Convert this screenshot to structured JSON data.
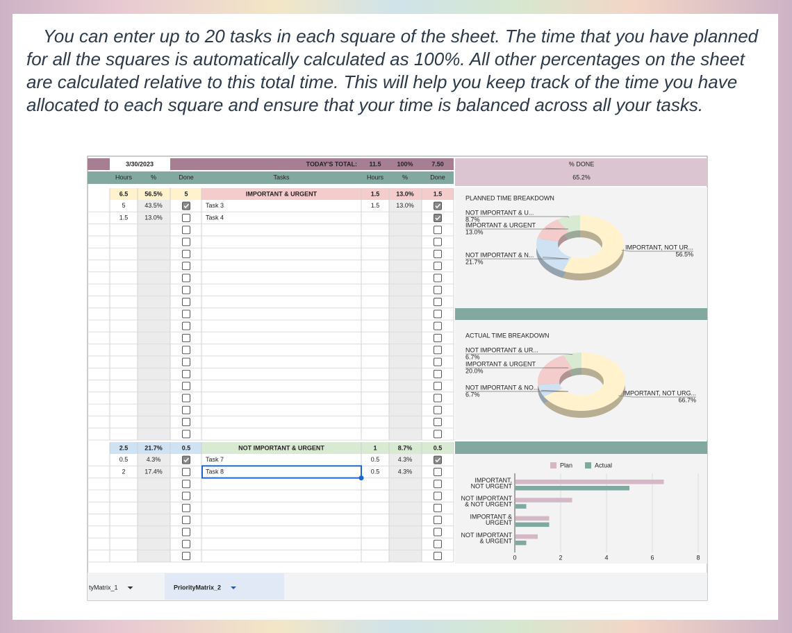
{
  "intro": "You can enter up to 20 tasks in each square of the sheet. The time that you have planned for all the squares is automatically calculated as 100%. All other percentages on the sheet are calculated relative to this total time. This will help you keep track of the time you have allocated to each square and ensure that your time is balanced across all your tasks.",
  "sheet": {
    "date": "3/30/2023",
    "todays_total_label": "TODAY'S TOTAL:",
    "todays_total": {
      "hours": 11.5,
      "percent": "100%",
      "done": "7.50"
    },
    "left_headers": [
      "Hours",
      "%",
      "Done"
    ],
    "tasks_header": "Tasks",
    "right_headers": [
      "Hours",
      "%",
      "Done"
    ],
    "percent_done_label": "% DONE",
    "percent_done": "65.2%",
    "quadrants": [
      {
        "left_summary": {
          "hours": 6.5,
          "percent": "56.5%",
          "done": 5
        },
        "title": "IMPORTANT & URGENT",
        "summary": {
          "hours": 1.5,
          "percent": "13.0%",
          "done": 1.5
        },
        "left_rows": [
          {
            "hours": 5,
            "percent": "43.5%",
            "done": true
          },
          {
            "hours": 1.5,
            "percent": "13.0%",
            "done": false
          }
        ],
        "tasks": [
          {
            "name": "Task 3",
            "hours": 1.5,
            "percent": "13.0%",
            "done": true
          },
          {
            "name": "Task 4",
            "done": true
          }
        ]
      },
      {
        "left_summary": {
          "hours": 2.5,
          "percent": "21.7%",
          "done": 0.5
        },
        "title": "NOT IMPORTANT & URGENT",
        "summary": {
          "hours": 1,
          "percent": "8.7%",
          "done": 0.5
        },
        "left_rows": [
          {
            "hours": 0.5,
            "percent": "4.3%",
            "done": true
          },
          {
            "hours": 2,
            "percent": "17.4%",
            "done": false
          }
        ],
        "tasks": [
          {
            "name": "Task 7",
            "hours": 0.5,
            "percent": "4.3%",
            "done": true
          },
          {
            "name": "Task 8",
            "hours": 0.5,
            "percent": "4.3%",
            "done": false
          }
        ]
      }
    ],
    "tabs": [
      "tyMatrix_1",
      "PriorityMatrix_2"
    ],
    "active_tab": 1
  },
  "chart_data": [
    {
      "type": "pie",
      "title": "PLANNED TIME BREAKDOWN",
      "donut": true,
      "categories": [
        "IMPORTANT, NOT UR...",
        "NOT IMPORTANT & N...",
        "IMPORTANT & URGENT",
        "NOT IMPORTANT & U..."
      ],
      "values": [
        56.5,
        21.7,
        13.0,
        8.7
      ],
      "value_labels": [
        "56.5%",
        "21.7%",
        "13.0%",
        "8.7%"
      ],
      "colors": [
        "#fff2cc",
        "#cfe2f3",
        "#f4cccc",
        "#d9ead3"
      ]
    },
    {
      "type": "pie",
      "title": "ACTUAL TIME BREAKDOWN",
      "donut": true,
      "categories": [
        "IMPORTANT, NOT URG...",
        "NOT IMPORTANT & NO...",
        "IMPORTANT & URGENT",
        "NOT IMPORTANT & UR..."
      ],
      "values": [
        66.7,
        6.7,
        20.0,
        6.7
      ],
      "value_labels": [
        "66.7%",
        "6.7%",
        "20.0%",
        "6.7%"
      ],
      "colors": [
        "#fff2cc",
        "#cfe2f3",
        "#f4cccc",
        "#d9ead3"
      ]
    },
    {
      "type": "hbar",
      "categories": [
        [
          "IMPORTANT,",
          "NOT URGENT"
        ],
        [
          "NOT IMPORTANT",
          "& NOT URGENT"
        ],
        [
          "IMPORTANT &",
          "URGENT"
        ],
        [
          "NOT IMPORTANT",
          "& URGENT"
        ]
      ],
      "series": [
        {
          "name": "Plan",
          "color": "#d5b8c6",
          "values": [
            6.5,
            2.5,
            1.5,
            1
          ]
        },
        {
          "name": "Actual",
          "color": "#7fa8a0",
          "values": [
            5,
            0.5,
            1.5,
            0.5
          ]
        }
      ],
      "xlim": [
        0,
        8
      ],
      "xticks": [
        0,
        2,
        4,
        6,
        8
      ],
      "grid": true,
      "legend": "top"
    }
  ]
}
